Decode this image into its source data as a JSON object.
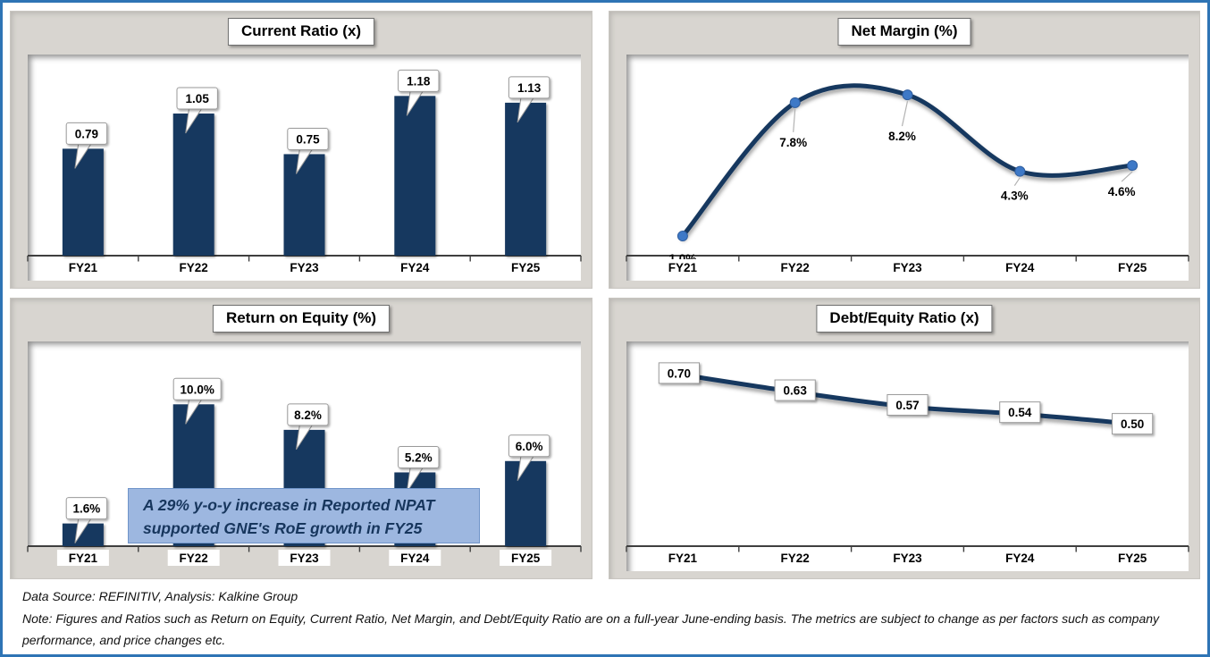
{
  "page": {
    "type": "financial-ratio-dashboard",
    "footer": {
      "source": "Data Source: REFINITIV, Analysis: Kalkine Group",
      "note": "Note: Figures and Ratios such as Return on Equity, Current Ratio, Net Margin, and Debt/Equity Ratio  are on a full-year June-ending basis. The metrics are subject to change as per factors such as company performance, and price changes etc."
    }
  },
  "colors": {
    "frame_border": "#2E74B5",
    "panel_bg": "#D8D5D0",
    "plot_bg": "#FFFFFF",
    "bar": "#17375E",
    "line": "#17375E",
    "marker": "#3E79C7",
    "marker_edge": "#2F5D9E",
    "axis": "#3F3F3F",
    "label_box_border": "#9A9A9A",
    "leader": "#B3B3B3",
    "annotation_bg": "#9DB7E0",
    "annotation_border": "#6F94C9",
    "annotation_text": "#17365D",
    "text": "#000000"
  },
  "chart_data": [
    {
      "id": "current-ratio",
      "type": "bar",
      "title": "Current Ratio (x)",
      "categories": [
        "FY21",
        "FY22",
        "FY23",
        "FY24",
        "FY25"
      ],
      "values": [
        0.79,
        1.05,
        0.75,
        1.18,
        1.13
      ],
      "labels": [
        "0.79",
        "1.05",
        "0.75",
        "1.18",
        "1.13"
      ],
      "label_style": "callout",
      "xlabel": "",
      "ylabel": "",
      "ylim": [
        0,
        1.42
      ],
      "grid": false,
      "legend": false
    },
    {
      "id": "net-margin",
      "type": "line",
      "title": "Net Margin (%)",
      "categories": [
        "FY21",
        "FY22",
        "FY23",
        "FY24",
        "FY25"
      ],
      "values": [
        1.0,
        7.8,
        8.2,
        4.3,
        4.6
      ],
      "labels": [
        "1.0%",
        "7.8%",
        "8.2%",
        "4.3%",
        "4.6%"
      ],
      "label_style": "below",
      "smooth": true,
      "markers": true,
      "xlabel": "",
      "ylabel": "",
      "ylim": [
        0,
        9.8
      ],
      "grid": false,
      "legend": false
    },
    {
      "id": "roe",
      "type": "bar",
      "title": "Return on Equity (%)",
      "categories": [
        "FY21",
        "FY22",
        "FY23",
        "FY24",
        "FY25"
      ],
      "values": [
        1.6,
        10.0,
        8.2,
        5.2,
        6.0
      ],
      "labels": [
        "1.6%",
        "10.0%",
        "8.2%",
        "5.2%",
        "6.0%"
      ],
      "label_style": "callout",
      "xlabel": "",
      "ylabel": "",
      "ylim": [
        0,
        13.8
      ],
      "grid": false,
      "legend": false,
      "annotation": {
        "line1": "A 29% y-o-y increase in Reported NPAT",
        "line2": "supported GNE's RoE growth in FY25"
      }
    },
    {
      "id": "debt-equity",
      "type": "line",
      "title": "Debt/Equity Ratio (x)",
      "categories": [
        "FY21",
        "FY22",
        "FY23",
        "FY24",
        "FY25"
      ],
      "values": [
        0.7,
        0.63,
        0.57,
        0.54,
        0.5
      ],
      "labels": [
        "0.70",
        "0.63",
        "0.57",
        "0.54",
        "0.50"
      ],
      "label_style": "box",
      "smooth": true,
      "markers": false,
      "xlabel": "",
      "ylabel": "",
      "ylim": [
        0,
        0.8
      ],
      "grid": false,
      "legend": false
    }
  ]
}
